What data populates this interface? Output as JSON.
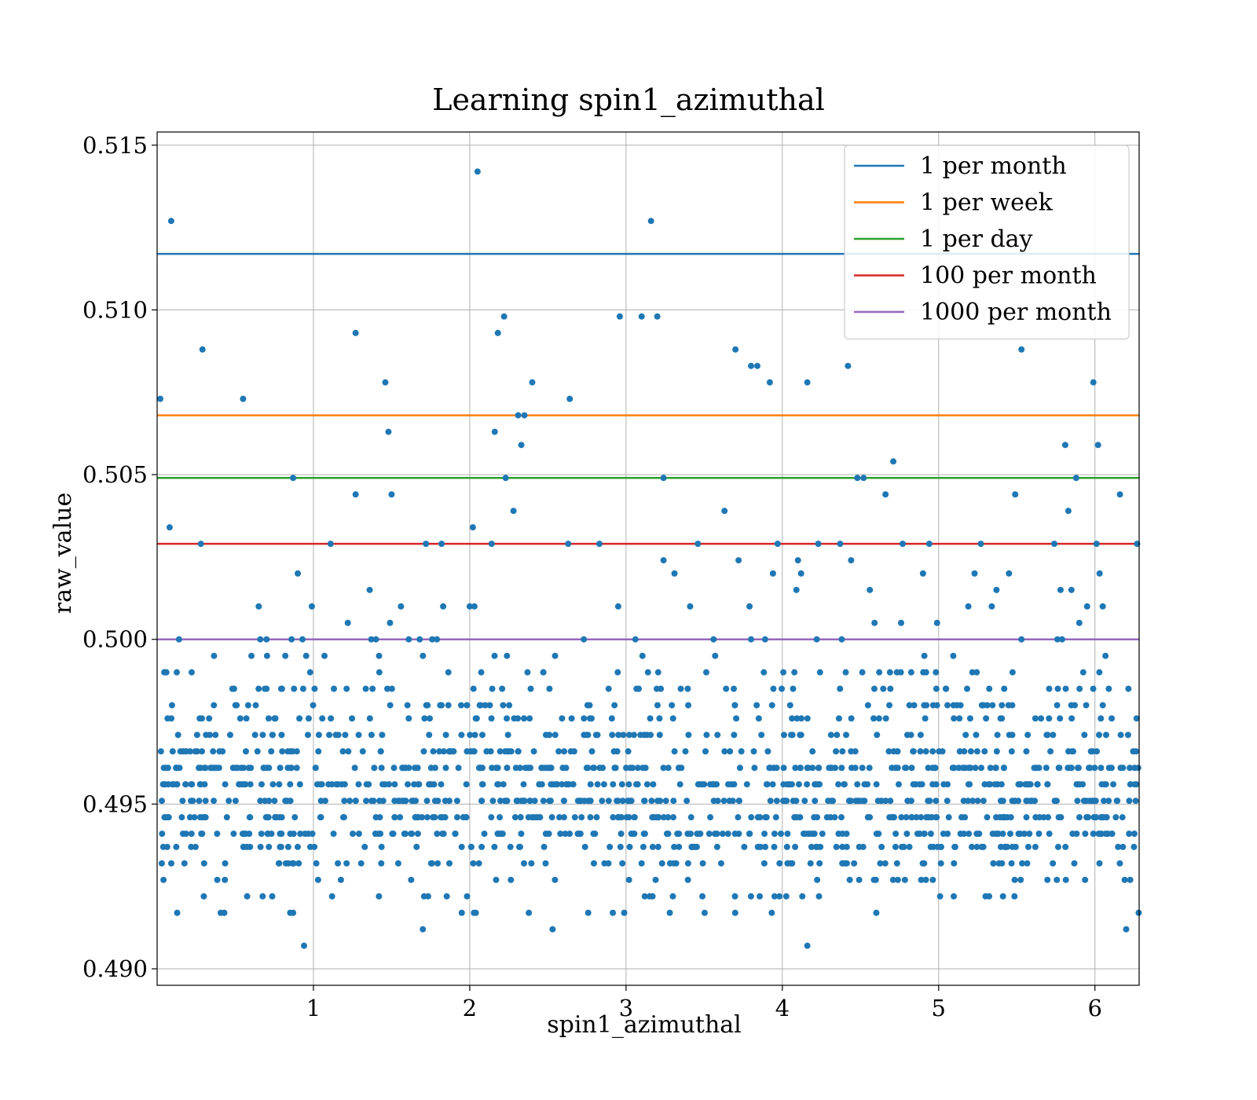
{
  "chart_data": {
    "type": "scatter",
    "title": "Learning spin1_azimuthal",
    "xlabel": "spin1_azimuthal",
    "ylabel": "raw_value",
    "xlim": [
      0.0,
      6.283
    ],
    "ylim": [
      0.4895,
      0.5154
    ],
    "x_ticks": [
      {
        "value": 1,
        "label": "1"
      },
      {
        "value": 2,
        "label": "2"
      },
      {
        "value": 3,
        "label": "3"
      },
      {
        "value": 4,
        "label": "4"
      },
      {
        "value": 5,
        "label": "5"
      },
      {
        "value": 6,
        "label": "6"
      }
    ],
    "y_ticks": [
      {
        "value": 0.49,
        "label": "0.490"
      },
      {
        "value": 0.495,
        "label": "0.495"
      },
      {
        "value": 0.5,
        "label": "0.500"
      },
      {
        "value": 0.505,
        "label": "0.505"
      },
      {
        "value": 0.51,
        "label": "0.510"
      },
      {
        "value": 0.515,
        "label": "0.515"
      }
    ],
    "grid": true,
    "legend_position": "top-right",
    "marker_color": "#1f77b4",
    "reference_lines": [
      {
        "name": "1 per month",
        "y": 0.5117,
        "color": "#1f77b4"
      },
      {
        "name": "1 per week",
        "y": 0.5068,
        "color": "#ff7f0e"
      },
      {
        "name": "1 per day",
        "y": 0.5049,
        "color": "#2ca02c"
      },
      {
        "name": "100 per month",
        "y": 0.5029,
        "color": "#d62728"
      },
      {
        "name": "1000 per month",
        "y": 0.5,
        "color": "#9467bd"
      }
    ],
    "points": [
      [
        0.02,
        0.5073
      ],
      [
        0.09,
        0.5127
      ],
      [
        0.08,
        0.5034
      ],
      [
        0.14,
        0.5
      ],
      [
        0.29,
        0.5088
      ],
      [
        0.28,
        0.5029
      ],
      [
        0.55,
        0.5073
      ],
      [
        0.65,
        0.501
      ],
      [
        0.66,
        0.5
      ],
      [
        0.7,
        0.5
      ],
      [
        0.82,
        0.4995
      ],
      [
        0.86,
        0.5
      ],
      [
        0.87,
        0.5049
      ],
      [
        0.9,
        0.502
      ],
      [
        0.93,
        0.5
      ],
      [
        0.94,
        0.4907
      ],
      [
        0.99,
        0.501
      ],
      [
        1.11,
        0.5029
      ],
      [
        1.22,
        0.5005
      ],
      [
        1.27,
        0.5093
      ],
      [
        1.27,
        0.5044
      ],
      [
        1.36,
        0.5015
      ],
      [
        1.37,
        0.5
      ],
      [
        1.4,
        0.5
      ],
      [
        1.42,
        0.4995
      ],
      [
        1.46,
        0.5078
      ],
      [
        1.48,
        0.5063
      ],
      [
        1.49,
        0.5005
      ],
      [
        1.5,
        0.5044
      ],
      [
        1.56,
        0.501
      ],
      [
        1.61,
        0.5
      ],
      [
        1.68,
        0.5
      ],
      [
        1.7,
        0.4912
      ],
      [
        1.72,
        0.5029
      ],
      [
        1.76,
        0.5
      ],
      [
        1.79,
        0.5
      ],
      [
        1.82,
        0.5029
      ],
      [
        1.83,
        0.501
      ],
      [
        2.0,
        0.501
      ],
      [
        2.03,
        0.501
      ],
      [
        2.02,
        0.5034
      ],
      [
        2.05,
        0.5142
      ],
      [
        2.14,
        0.5029
      ],
      [
        2.16,
        0.5063
      ],
      [
        2.18,
        0.5093
      ],
      [
        2.22,
        0.5098
      ],
      [
        2.23,
        0.5049
      ],
      [
        2.28,
        0.5039
      ],
      [
        2.31,
        0.5068
      ],
      [
        2.33,
        0.5059
      ],
      [
        2.35,
        0.5068
      ],
      [
        2.4,
        0.5078
      ],
      [
        2.53,
        0.4912
      ],
      [
        2.64,
        0.5073
      ],
      [
        2.63,
        0.5029
      ],
      [
        2.73,
        0.5
      ],
      [
        2.83,
        0.5029
      ],
      [
        2.96,
        0.5098
      ],
      [
        2.95,
        0.501
      ],
      [
        3.06,
        0.5
      ],
      [
        3.1,
        0.5098
      ],
      [
        3.16,
        0.5127
      ],
      [
        3.2,
        0.5098
      ],
      [
        3.24,
        0.5049
      ],
      [
        3.24,
        0.5024
      ],
      [
        3.31,
        0.502
      ],
      [
        3.41,
        0.501
      ],
      [
        3.46,
        0.5029
      ],
      [
        3.56,
        0.5
      ],
      [
        3.63,
        0.5039
      ],
      [
        3.7,
        0.5088
      ],
      [
        3.72,
        0.5024
      ],
      [
        3.79,
        0.501
      ],
      [
        3.8,
        0.5083
      ],
      [
        3.84,
        0.5083
      ],
      [
        3.8,
        0.5
      ],
      [
        3.89,
        0.5
      ],
      [
        3.92,
        0.5078
      ],
      [
        3.94,
        0.502
      ],
      [
        3.97,
        0.5029
      ],
      [
        4.1,
        0.5024
      ],
      [
        4.09,
        0.5015
      ],
      [
        4.12,
        0.502
      ],
      [
        4.16,
        0.5078
      ],
      [
        4.16,
        0.4907
      ],
      [
        4.22,
        0.5
      ],
      [
        4.23,
        0.5029
      ],
      [
        4.38,
        0.5
      ],
      [
        4.37,
        0.5029
      ],
      [
        4.42,
        0.5083
      ],
      [
        4.44,
        0.5024
      ],
      [
        4.48,
        0.5049
      ],
      [
        4.52,
        0.5049
      ],
      [
        4.56,
        0.5015
      ],
      [
        4.59,
        0.5005
      ],
      [
        4.66,
        0.5044
      ],
      [
        4.71,
        0.5054
      ],
      [
        4.76,
        0.5005
      ],
      [
        4.77,
        0.5029
      ],
      [
        4.94,
        0.5029
      ],
      [
        4.9,
        0.502
      ],
      [
        4.99,
        0.5005
      ],
      [
        5.19,
        0.501
      ],
      [
        5.23,
        0.502
      ],
      [
        5.27,
        0.5029
      ],
      [
        5.34,
        0.501
      ],
      [
        5.37,
        0.5015
      ],
      [
        5.45,
        0.502
      ],
      [
        5.49,
        0.5044
      ],
      [
        5.53,
        0.5088
      ],
      [
        5.53,
        0.5
      ],
      [
        5.74,
        0.5029
      ],
      [
        5.76,
        0.5
      ],
      [
        5.78,
        0.5015
      ],
      [
        5.79,
        0.5
      ],
      [
        5.81,
        0.5059
      ],
      [
        5.83,
        0.5039
      ],
      [
        5.85,
        0.5015
      ],
      [
        5.88,
        0.5049
      ],
      [
        5.9,
        0.5005
      ],
      [
        5.95,
        0.501
      ],
      [
        5.99,
        0.5078
      ],
      [
        6.01,
        0.5029
      ],
      [
        6.02,
        0.5059
      ],
      [
        6.03,
        0.502
      ],
      [
        6.05,
        0.501
      ],
      [
        6.16,
        0.5044
      ],
      [
        6.2,
        0.4912
      ],
      [
        6.27,
        0.5029
      ],
      [
        6.28,
        0.4917
      ]
    ],
    "dense_band": {
      "note_x_range": [
        0.02,
        6.28
      ],
      "levels": [
        0.4917,
        0.4922,
        0.4927,
        0.4932,
        0.4937,
        0.4941,
        0.4946,
        0.4951,
        0.4956,
        0.4961,
        0.4966,
        0.4971,
        0.4976,
        0.498,
        0.4985,
        0.499,
        0.4995
      ],
      "level_weights": [
        3,
        4,
        6,
        10,
        14,
        22,
        26,
        26,
        24,
        22,
        16,
        12,
        10,
        8,
        6,
        4,
        3
      ],
      "count": 1400
    }
  }
}
